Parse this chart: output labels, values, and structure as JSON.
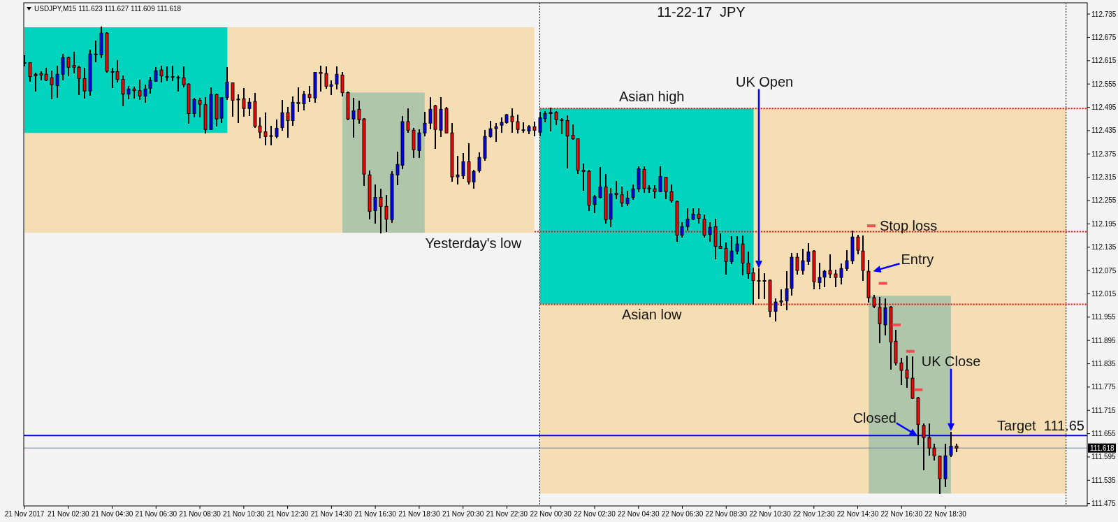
{
  "chart_data": {
    "type": "candlestick",
    "title": "11-22-17  JPY",
    "subtitle": "USDJPY,M15 111.623 111.627 111.609 111.618",
    "x": [
      "2017-11-21T00:30",
      "2017-11-21T00:45",
      "2017-11-21T01:00",
      "2017-11-21T01:15",
      "2017-11-21T01:30",
      "2017-11-21T01:45",
      "2017-11-21T02:00",
      "2017-11-21T02:15",
      "2017-11-21T02:30",
      "2017-11-21T02:45",
      "2017-11-21T03:00",
      "2017-11-21T03:15",
      "2017-11-21T03:30",
      "2017-11-21T03:45",
      "2017-11-21T04:00",
      "2017-11-21T04:15",
      "2017-11-21T04:30",
      "2017-11-21T04:45",
      "2017-11-21T05:00",
      "2017-11-21T05:15",
      "2017-11-21T05:30",
      "2017-11-21T05:45",
      "2017-11-21T06:00",
      "2017-11-21T06:15",
      "2017-11-21T06:30",
      "2017-11-21T06:45",
      "2017-11-21T07:00",
      "2017-11-21T07:15",
      "2017-11-21T07:30",
      "2017-11-21T07:45",
      "2017-11-21T08:00",
      "2017-11-21T08:15",
      "2017-11-21T08:30",
      "2017-11-21T08:45",
      "2017-11-21T09:00",
      "2017-11-21T09:15",
      "2017-11-21T09:30",
      "2017-11-21T09:45",
      "2017-11-21T10:00",
      "2017-11-21T10:15",
      "2017-11-21T10:30",
      "2017-11-21T10:45",
      "2017-11-21T11:00",
      "2017-11-21T11:15",
      "2017-11-21T11:30",
      "2017-11-21T11:45",
      "2017-11-21T12:00",
      "2017-11-21T12:15",
      "2017-11-21T12:30",
      "2017-11-21T12:45",
      "2017-11-21T13:00",
      "2017-11-21T13:15",
      "2017-11-21T13:30",
      "2017-11-21T13:45",
      "2017-11-21T14:00",
      "2017-11-21T14:15",
      "2017-11-21T14:30",
      "2017-11-21T14:45",
      "2017-11-21T15:00",
      "2017-11-21T15:15",
      "2017-11-21T15:30",
      "2017-11-21T15:45",
      "2017-11-21T16:00",
      "2017-11-21T16:15",
      "2017-11-21T16:30",
      "2017-11-21T16:45",
      "2017-11-21T17:00",
      "2017-11-21T17:15",
      "2017-11-21T17:30",
      "2017-11-21T17:45",
      "2017-11-21T18:00",
      "2017-11-21T18:15",
      "2017-11-21T18:30",
      "2017-11-21T18:45",
      "2017-11-21T19:00",
      "2017-11-21T19:15",
      "2017-11-21T19:30",
      "2017-11-21T19:45",
      "2017-11-21T20:00",
      "2017-11-21T20:15",
      "2017-11-21T20:30",
      "2017-11-21T20:45",
      "2017-11-21T21:00",
      "2017-11-21T21:15",
      "2017-11-21T21:30",
      "2017-11-21T21:45",
      "2017-11-21T22:00",
      "2017-11-21T22:15",
      "2017-11-21T22:30",
      "2017-11-21T22:45",
      "2017-11-21T23:00",
      "2017-11-21T23:15",
      "2017-11-21T23:30",
      "2017-11-21T23:45",
      "2017-11-22T00:00",
      "2017-11-22T00:15",
      "2017-11-22T00:30",
      "2017-11-22T00:45",
      "2017-11-22T01:00",
      "2017-11-22T01:15",
      "2017-11-22T01:30",
      "2017-11-22T01:45",
      "2017-11-22T02:00",
      "2017-11-22T02:15",
      "2017-11-22T02:30",
      "2017-11-22T02:45",
      "2017-11-22T03:00",
      "2017-11-22T03:15",
      "2017-11-22T03:30",
      "2017-11-22T03:45",
      "2017-11-22T04:00",
      "2017-11-22T04:15",
      "2017-11-22T04:30",
      "2017-11-22T04:45",
      "2017-11-22T05:00",
      "2017-11-22T05:15",
      "2017-11-22T05:30",
      "2017-11-22T05:45",
      "2017-11-22T06:00",
      "2017-11-22T06:15",
      "2017-11-22T06:30",
      "2017-11-22T06:45",
      "2017-11-22T07:00",
      "2017-11-22T07:15",
      "2017-11-22T07:30",
      "2017-11-22T07:45",
      "2017-11-22T08:00",
      "2017-11-22T08:15",
      "2017-11-22T08:30",
      "2017-11-22T08:45",
      "2017-11-22T09:00",
      "2017-11-22T09:15",
      "2017-11-22T09:30",
      "2017-11-22T09:45",
      "2017-11-22T10:00",
      "2017-11-22T10:15",
      "2017-11-22T10:30",
      "2017-11-22T10:45",
      "2017-11-22T11:00",
      "2017-11-22T11:15",
      "2017-11-22T11:30",
      "2017-11-22T11:45",
      "2017-11-22T12:00",
      "2017-11-22T12:15",
      "2017-11-22T12:30",
      "2017-11-22T12:45",
      "2017-11-22T13:00",
      "2017-11-22T13:15",
      "2017-11-22T13:30",
      "2017-11-22T13:45",
      "2017-11-22T14:00",
      "2017-11-22T14:15",
      "2017-11-22T14:30",
      "2017-11-22T14:45",
      "2017-11-22T15:00",
      "2017-11-22T15:15",
      "2017-11-22T15:30",
      "2017-11-22T15:45",
      "2017-11-22T16:00",
      "2017-11-22T16:15",
      "2017-11-22T16:30",
      "2017-11-22T16:45",
      "2017-11-22T17:00",
      "2017-11-22T17:15",
      "2017-11-22T17:30",
      "2017-11-22T17:45",
      "2017-11-22T18:00",
      "2017-11-22T18:15",
      "2017-11-22T18:30",
      "2017-11-22T18:45",
      "2017-11-22T19:00"
    ],
    "ohlc": [
      [
        112.61,
        112.627,
        112.603,
        112.61
      ],
      [
        112.61,
        112.61,
        112.563,
        112.574
      ],
      [
        112.576,
        112.583,
        112.537,
        112.58
      ],
      [
        112.582,
        112.586,
        112.566,
        112.578
      ],
      [
        112.58,
        112.595,
        112.565,
        112.565
      ],
      [
        112.571,
        112.588,
        112.517,
        112.553
      ],
      [
        112.551,
        112.6,
        112.522,
        112.58
      ],
      [
        112.58,
        112.631,
        112.567,
        112.623
      ],
      [
        112.623,
        112.623,
        112.577,
        112.598
      ],
      [
        112.603,
        112.636,
        112.585,
        112.598
      ],
      [
        112.598,
        112.6,
        112.529,
        112.569
      ],
      [
        112.569,
        112.595,
        112.52,
        112.537
      ],
      [
        112.537,
        112.641,
        112.527,
        112.632
      ],
      [
        112.631,
        112.665,
        112.613,
        112.632
      ],
      [
        112.63,
        112.701,
        112.624,
        112.686
      ],
      [
        112.686,
        112.686,
        112.586,
        112.588
      ],
      [
        112.587,
        112.595,
        112.547,
        112.587
      ],
      [
        112.587,
        112.615,
        112.561,
        112.567
      ],
      [
        112.567,
        112.575,
        112.5,
        112.529
      ],
      [
        112.529,
        112.548,
        112.518,
        112.542
      ],
      [
        112.542,
        112.546,
        112.52,
        112.538
      ],
      [
        112.538,
        112.564,
        112.516,
        112.524
      ],
      [
        112.524,
        112.551,
        112.509,
        112.542
      ],
      [
        112.544,
        112.571,
        112.532,
        112.564
      ],
      [
        112.562,
        112.597,
        112.562,
        112.589
      ],
      [
        112.591,
        112.6,
        112.561,
        112.576
      ],
      [
        112.574,
        112.598,
        112.565,
        112.574
      ],
      [
        112.574,
        112.6,
        112.565,
        112.574
      ],
      [
        112.572,
        112.576,
        112.538,
        112.572
      ],
      [
        112.571,
        112.598,
        112.549,
        112.553
      ],
      [
        112.555,
        112.555,
        112.455,
        112.479
      ],
      [
        112.479,
        112.517,
        112.471,
        112.515
      ],
      [
        112.513,
        112.517,
        112.471,
        112.503
      ],
      [
        112.502,
        112.519,
        112.429,
        112.438
      ],
      [
        112.438,
        112.544,
        112.438,
        112.528
      ],
      [
        112.528,
        112.528,
        112.447,
        112.465
      ],
      [
        112.467,
        112.52,
        112.456,
        112.52
      ],
      [
        112.52,
        112.597,
        112.515,
        112.56
      ],
      [
        112.558,
        112.558,
        112.473,
        112.513
      ],
      [
        112.516,
        112.526,
        112.457,
        112.516
      ],
      [
        112.517,
        112.543,
        112.473,
        112.492
      ],
      [
        112.492,
        112.517,
        112.474,
        112.508
      ],
      [
        112.51,
        112.531,
        112.444,
        112.446
      ],
      [
        112.447,
        112.467,
        112.417,
        112.431
      ],
      [
        112.432,
        112.48,
        112.399,
        112.42
      ],
      [
        112.422,
        112.446,
        112.399,
        112.422
      ],
      [
        112.42,
        112.462,
        112.416,
        112.441
      ],
      [
        112.443,
        112.513,
        112.437,
        112.481
      ],
      [
        112.481,
        112.495,
        112.419,
        112.461
      ],
      [
        112.461,
        112.521,
        112.45,
        112.508
      ],
      [
        112.508,
        112.545,
        112.486,
        112.504
      ],
      [
        112.504,
        112.535,
        112.488,
        112.528
      ],
      [
        112.528,
        112.549,
        112.51,
        112.52
      ],
      [
        112.519,
        112.585,
        112.508,
        112.585
      ],
      [
        112.585,
        112.6,
        112.538,
        112.582
      ],
      [
        112.582,
        112.598,
        112.544,
        112.549
      ],
      [
        112.549,
        112.562,
        112.529,
        112.553
      ],
      [
        112.555,
        112.598,
        112.542,
        112.58
      ],
      [
        112.578,
        112.585,
        112.525,
        112.533
      ],
      [
        112.533,
        112.533,
        112.463,
        112.465
      ],
      [
        112.465,
        112.517,
        112.419,
        112.486
      ],
      [
        112.49,
        112.51,
        112.454,
        112.463
      ],
      [
        112.465,
        112.465,
        112.294,
        112.323
      ],
      [
        112.321,
        112.33,
        112.209,
        112.227
      ],
      [
        112.229,
        112.294,
        112.197,
        112.263
      ],
      [
        112.263,
        112.283,
        112.172,
        112.24
      ],
      [
        112.24,
        112.267,
        112.175,
        112.207
      ],
      [
        112.206,
        112.328,
        112.2,
        112.323
      ],
      [
        112.321,
        112.379,
        112.296,
        112.348
      ],
      [
        112.346,
        112.47,
        112.337,
        112.458
      ],
      [
        112.458,
        112.49,
        112.432,
        112.436
      ],
      [
        112.436,
        112.44,
        112.366,
        112.386
      ],
      [
        112.384,
        112.436,
        112.366,
        112.429
      ],
      [
        112.429,
        112.481,
        112.422,
        112.454
      ],
      [
        112.454,
        112.52,
        112.44,
        112.49
      ],
      [
        112.499,
        112.499,
        112.389,
        112.438
      ],
      [
        112.436,
        112.519,
        112.42,
        112.49
      ],
      [
        112.492,
        112.495,
        112.429,
        112.429
      ],
      [
        112.429,
        112.452,
        112.305,
        112.316
      ],
      [
        112.316,
        112.368,
        112.299,
        112.321
      ],
      [
        112.319,
        112.375,
        112.312,
        112.355
      ],
      [
        112.355,
        112.4,
        112.299,
        112.303
      ],
      [
        112.303,
        112.333,
        112.287,
        112.33
      ],
      [
        112.332,
        112.377,
        112.328,
        112.366
      ],
      [
        112.364,
        112.434,
        112.359,
        112.42
      ],
      [
        112.42,
        112.458,
        112.418,
        112.44
      ],
      [
        112.44,
        112.452,
        112.407,
        112.445
      ],
      [
        112.449,
        112.467,
        112.432,
        112.456
      ],
      [
        112.456,
        112.477,
        112.454,
        112.476
      ],
      [
        112.472,
        112.49,
        112.432,
        112.458
      ],
      [
        112.458,
        112.474,
        112.429,
        112.438
      ],
      [
        112.437,
        112.454,
        112.431,
        112.437
      ],
      [
        112.434,
        112.447,
        112.427,
        112.445
      ],
      [
        112.445,
        112.456,
        112.423,
        112.436
      ],
      [
        112.431,
        112.481,
        112.423,
        112.468
      ],
      [
        112.466,
        112.483,
        112.459,
        112.479
      ],
      [
        112.479,
        112.492,
        112.435,
        112.482
      ],
      [
        112.482,
        112.484,
        112.451,
        112.463
      ],
      [
        112.463,
        112.466,
        112.428,
        112.463
      ],
      [
        112.461,
        112.472,
        112.34,
        112.421
      ],
      [
        112.423,
        112.45,
        112.414,
        112.414
      ],
      [
        112.414,
        112.414,
        112.326,
        112.333
      ],
      [
        112.333,
        112.349,
        112.282,
        112.33
      ],
      [
        112.33,
        112.333,
        112.229,
        112.243
      ],
      [
        112.245,
        112.267,
        112.225,
        112.265
      ],
      [
        112.263,
        112.34,
        112.263,
        112.29
      ],
      [
        112.29,
        112.321,
        112.197,
        112.206
      ],
      [
        112.207,
        112.285,
        112.189,
        112.272
      ],
      [
        112.274,
        112.303,
        112.26,
        112.27
      ],
      [
        112.27,
        112.29,
        112.24,
        112.249
      ],
      [
        112.247,
        112.278,
        112.243,
        112.261
      ],
      [
        112.263,
        112.294,
        112.258,
        112.285
      ],
      [
        112.285,
        112.342,
        112.279,
        112.337
      ],
      [
        112.335,
        112.342,
        112.276,
        112.286
      ],
      [
        112.287,
        112.292,
        112.276,
        112.286
      ],
      [
        112.285,
        112.292,
        112.263,
        112.278
      ],
      [
        112.278,
        112.342,
        112.278,
        112.317
      ],
      [
        112.315,
        112.315,
        112.261,
        112.278
      ],
      [
        112.278,
        112.294,
        112.251,
        112.254
      ],
      [
        112.252,
        112.254,
        112.151,
        112.166
      ],
      [
        112.166,
        112.197,
        112.162,
        112.188
      ],
      [
        112.188,
        112.233,
        112.179,
        112.207
      ],
      [
        112.207,
        112.233,
        112.207,
        112.22
      ],
      [
        112.22,
        112.233,
        112.198,
        112.209
      ],
      [
        112.207,
        112.218,
        112.162,
        112.166
      ],
      [
        112.168,
        112.197,
        112.15,
        112.186
      ],
      [
        112.188,
        112.207,
        112.105,
        112.137
      ],
      [
        112.137,
        112.168,
        112.132,
        112.132
      ],
      [
        112.132,
        112.145,
        112.067,
        112.098
      ],
      [
        112.098,
        112.162,
        112.094,
        112.125
      ],
      [
        112.125,
        112.161,
        112.119,
        112.143
      ],
      [
        112.143,
        112.164,
        112.064,
        112.094
      ],
      [
        112.094,
        112.121,
        112.056,
        112.067
      ],
      [
        112.069,
        112.08,
        111.989,
        112.049
      ],
      [
        112.049,
        112.079,
        112.004,
        112.049
      ],
      [
        112.049,
        112.067,
        112.004,
        112.049
      ],
      [
        112.05,
        112.05,
        111.957,
        111.97
      ],
      [
        111.97,
        112.001,
        111.945,
        111.994
      ],
      [
        111.994,
        112.024,
        111.985,
        111.997
      ],
      [
        111.997,
        112.071,
        111.975,
        112.028
      ],
      [
        112.029,
        112.118,
        112.013,
        112.109
      ],
      [
        112.109,
        112.118,
        112.067,
        112.075
      ],
      [
        112.075,
        112.129,
        112.067,
        112.1
      ],
      [
        112.098,
        112.143,
        112.091,
        112.123
      ],
      [
        112.125,
        112.125,
        112.028,
        112.046
      ],
      [
        112.044,
        112.093,
        112.028,
        112.057
      ],
      [
        112.058,
        112.075,
        112.033,
        112.073
      ],
      [
        112.075,
        112.114,
        112.058,
        112.066
      ],
      [
        112.066,
        112.075,
        112.033,
        112.057
      ],
      [
        112.057,
        112.091,
        112.041,
        112.08
      ],
      [
        112.08,
        112.125,
        112.075,
        112.1
      ],
      [
        112.1,
        112.175,
        112.093,
        112.161
      ],
      [
        112.161,
        112.165,
        112.118,
        112.127
      ],
      [
        112.125,
        112.163,
        112.05,
        112.075
      ],
      [
        112.073,
        112.1,
        111.994,
        112.005
      ],
      [
        112.005,
        112.01,
        111.98,
        111.983
      ],
      [
        111.98,
        112.005,
        111.89,
        111.938
      ],
      [
        111.935,
        112.001,
        111.909,
        111.979
      ],
      [
        111.981,
        111.981,
        111.821,
        111.891
      ],
      [
        111.893,
        111.92,
        111.832,
        111.837
      ],
      [
        111.837,
        111.848,
        111.782,
        111.818
      ],
      [
        111.819,
        111.854,
        111.775,
        111.798
      ],
      [
        111.798,
        111.852,
        111.746,
        111.746
      ],
      [
        111.747,
        111.747,
        111.627,
        111.679
      ],
      [
        111.676,
        111.679,
        111.562,
        111.645
      ],
      [
        111.645,
        111.679,
        111.601,
        111.618
      ],
      [
        111.618,
        111.628,
        111.588,
        111.598
      ],
      [
        111.597,
        111.597,
        111.501,
        111.539
      ],
      [
        111.539,
        111.627,
        111.52,
        111.598
      ],
      [
        111.6,
        111.658,
        111.597,
        111.623
      ],
      [
        111.623,
        111.627,
        111.609,
        111.618
      ]
    ],
    "series": [
      {
        "type": "scatter",
        "color": "#ef4f4f",
        "x": [
          "2017-11-22T15:07",
          "2017-11-22T15:39",
          "2017-11-22T16:16",
          "2017-11-22T16:54",
          "2017-11-22T17:16"
        ],
        "values": [
          112.19,
          112.042,
          111.935,
          111.867,
          111.768
        ]
      }
    ],
    "xlim": [
      "2017-11-21T00:28",
      "2017-11-23T00:58"
    ],
    "ylim": [
      111.469,
      112.764
    ],
    "xticks": [
      {
        "value": "2017-11-21T00:30",
        "label": "21 Nov 2017"
      },
      {
        "value": "2017-11-21T02:30",
        "label": "21 Nov 02:30"
      },
      {
        "value": "2017-11-21T04:30",
        "label": "21 Nov 04:30"
      },
      {
        "value": "2017-11-21T06:30",
        "label": "21 Nov 06:30"
      },
      {
        "value": "2017-11-21T08:30",
        "label": "21 Nov 08:30"
      },
      {
        "value": "2017-11-21T10:30",
        "label": "21 Nov 10:30"
      },
      {
        "value": "2017-11-21T12:30",
        "label": "21 Nov 12:30"
      },
      {
        "value": "2017-11-21T14:30",
        "label": "21 Nov 14:30"
      },
      {
        "value": "2017-11-21T16:30",
        "label": "21 Nov 16:30"
      },
      {
        "value": "2017-11-21T18:30",
        "label": "21 Nov 18:30"
      },
      {
        "value": "2017-11-21T20:30",
        "label": "21 Nov 20:30"
      },
      {
        "value": "2017-11-21T22:30",
        "label": "21 Nov 22:30"
      },
      {
        "value": "2017-11-22T00:30",
        "label": "22 Nov 00:30"
      },
      {
        "value": "2017-11-22T02:30",
        "label": "22 Nov 02:30"
      },
      {
        "value": "2017-11-22T04:30",
        "label": "22 Nov 04:30"
      },
      {
        "value": "2017-11-22T06:30",
        "label": "22 Nov 06:30"
      },
      {
        "value": "2017-11-22T08:30",
        "label": "22 Nov 08:30"
      },
      {
        "value": "2017-11-22T10:30",
        "label": "22 Nov 10:30"
      },
      {
        "value": "2017-11-22T12:30",
        "label": "22 Nov 12:30"
      },
      {
        "value": "2017-11-22T14:30",
        "label": "22 Nov 14:30"
      },
      {
        "value": "2017-11-22T16:30",
        "label": "22 Nov 16:30"
      },
      {
        "value": "2017-11-22T18:30",
        "label": "22 Nov 18:30"
      }
    ],
    "yticks": [
      112.735,
      112.675,
      112.615,
      112.555,
      112.495,
      112.435,
      112.375,
      112.315,
      112.255,
      112.195,
      112.135,
      112.075,
      112.015,
      111.955,
      111.895,
      111.835,
      111.775,
      111.715,
      111.655,
      111.595,
      111.535,
      111.475
    ],
    "bands": [
      {
        "axis": "x",
        "from": "2017-11-21T00:30",
        "to": "2017-11-21T23:45",
        "color": "#f5deb3"
      },
      {
        "axis": "x",
        "from": "2017-11-22T00:00",
        "to": "2017-11-23T00:00",
        "color": "#f5deb3"
      },
      {
        "axis": "x",
        "from": "2017-11-21T00:30",
        "to": "2017-11-21T09:45",
        "color": "#00d4bd"
      },
      {
        "axis": "x",
        "from": "2017-11-22T00:00",
        "to": "2017-11-22T09:45",
        "color": "#00d4bd"
      },
      {
        "axis": "x",
        "from": "2017-11-21T15:00",
        "to": "2017-11-21T18:45",
        "color": "#afc6aa"
      },
      {
        "axis": "x",
        "from": "2017-11-22T15:00",
        "to": "2017-11-22T18:45",
        "color": "#afc6aa"
      }
    ],
    "ref_lines": [
      {
        "axis": "y",
        "value": 112.492,
        "label": "Asian high",
        "color": "#ff0000",
        "line_style": "dotted"
      },
      {
        "axis": "y",
        "value": 112.175,
        "label": "Yesterday's low",
        "color": "#ff0000",
        "line_style": "dotted"
      },
      {
        "axis": "y",
        "value": 111.988,
        "label": "Asian low",
        "color": "#ff0000",
        "line_style": "dotted"
      },
      {
        "axis": "y",
        "value": 111.65,
        "label": "Target  111.65",
        "color": "#0000ff",
        "line_style": "solid"
      },
      {
        "axis": "y",
        "value": 111.618,
        "label": "111.618",
        "color": "#778899",
        "line_style": "solid"
      },
      {
        "axis": "x",
        "value": "2017-11-22T00:00",
        "color": "#000000",
        "line_style": "dotted"
      },
      {
        "axis": "x",
        "value": "2017-11-23T00:00",
        "color": "#000000",
        "line_style": "dotted"
      }
    ],
    "annotations": [
      "UK Open",
      {
        "text": "Entry",
        "x": "2017-11-22T15:12",
        "y": 112.073
      },
      {
        "text": "Stop loss",
        "x": "2017-11-22T15:07",
        "y": 112.19
      },
      {
        "text": "Closed",
        "x": "2017-11-22T17:13",
        "y": 111.65
      },
      "UK Close"
    ]
  }
}
